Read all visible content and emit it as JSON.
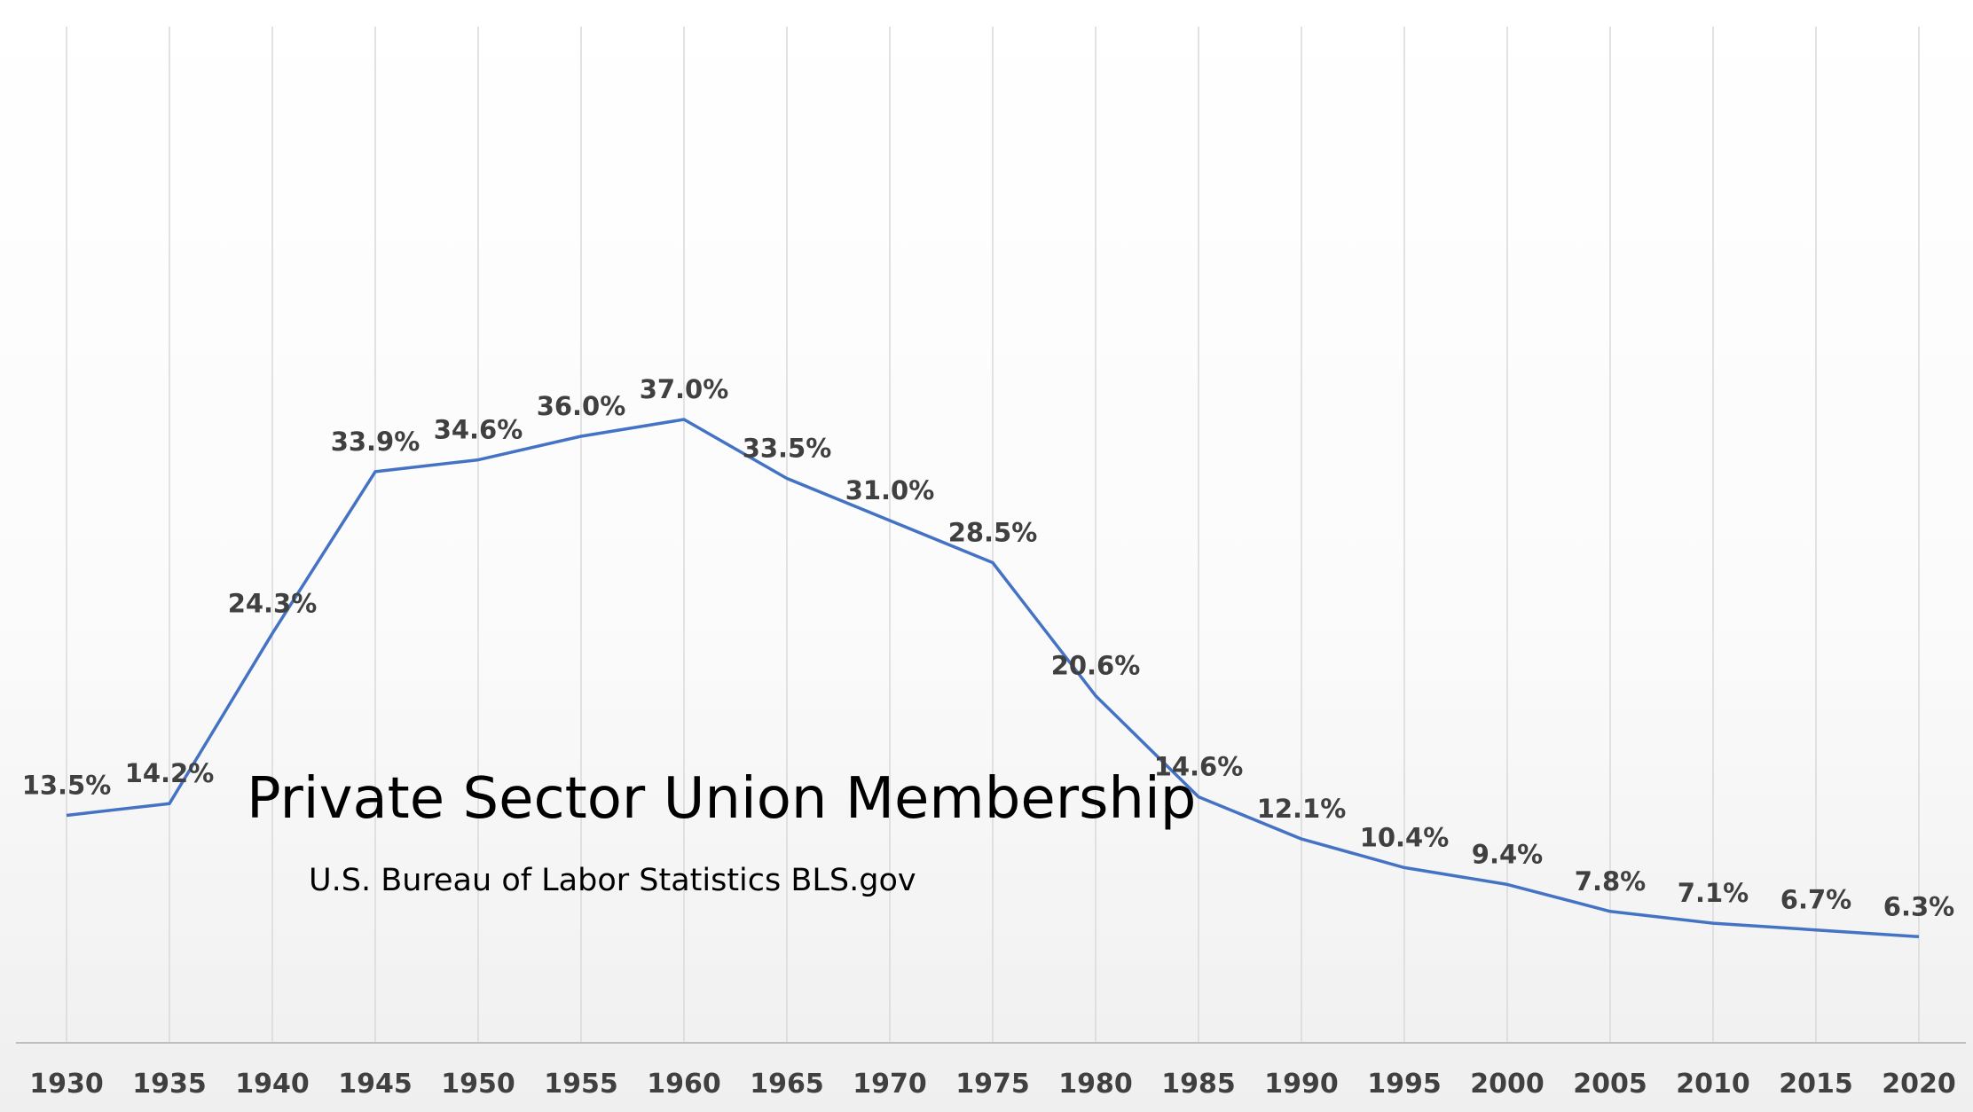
{
  "colors": {
    "line": "#4472c4",
    "gridline": "#d9d9d9",
    "axis": "#bfbfbf",
    "data_label": "#404040",
    "tick_label": "#404040",
    "title": "#000000"
  },
  "chart_data": {
    "type": "line",
    "title": "Private Sector Union Membership",
    "subtitle": "U.S. Bureau of Labor Statistics BLS.gov",
    "categories": [
      "1930",
      "1935",
      "1940",
      "1945",
      "1950",
      "1955",
      "1960",
      "1965",
      "1970",
      "1975",
      "1980",
      "1985",
      "1990",
      "1995",
      "2000",
      "2005",
      "2010",
      "2015",
      "2020"
    ],
    "series": [
      {
        "values": [
          13.5,
          14.2,
          24.3,
          33.9,
          34.6,
          36.0,
          37.0,
          33.5,
          31.0,
          28.5,
          20.6,
          14.6,
          12.1,
          10.4,
          9.4,
          7.8,
          7.1,
          6.7,
          6.3
        ],
        "labels": [
          "13.5%",
          "14.2%",
          "24.3%",
          "33.9%",
          "34.6%",
          "36.0%",
          "37.0%",
          "33.5%",
          "31.0%",
          "28.5%",
          "20.6%",
          "14.6%",
          "12.1%",
          "10.4%",
          "9.4%",
          "7.8%",
          "7.1%",
          "6.7%",
          "6.3%"
        ]
      }
    ],
    "ylim": [
      0,
      40
    ],
    "xlabel": "",
    "ylabel": "",
    "grid": "vertical",
    "legend": "none"
  }
}
